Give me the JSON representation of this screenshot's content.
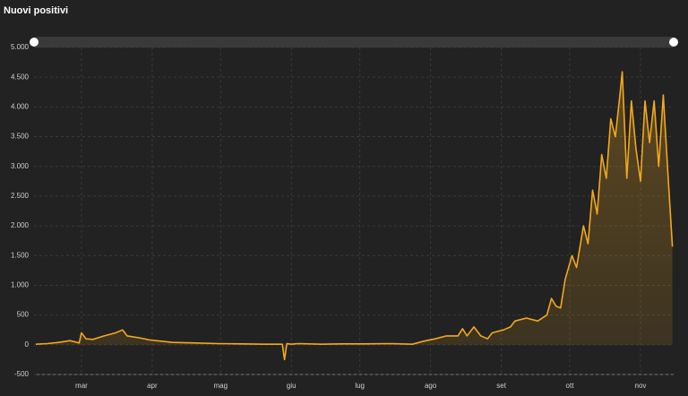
{
  "chart_data": {
    "type": "area",
    "title": "Nuovi positivi",
    "color": "#f2a81d",
    "grid": true,
    "x": [
      0,
      5,
      10,
      15,
      19,
      20,
      22,
      25,
      30,
      35,
      38,
      40,
      45,
      50,
      55,
      60,
      70,
      80,
      90,
      100,
      108,
      109,
      110,
      112,
      115,
      125,
      135,
      145,
      155,
      165,
      170,
      175,
      180,
      185,
      187,
      189,
      192,
      195,
      198,
      200,
      205,
      208,
      210,
      215,
      220,
      224,
      226,
      228,
      230,
      232,
      235,
      237,
      240,
      242,
      244,
      246,
      248,
      250,
      252,
      254,
      256,
      257,
      259,
      261,
      263,
      265,
      267,
      269,
      271,
      273,
      275,
      277,
      279
    ],
    "values": [
      10,
      20,
      40,
      70,
      30,
      200,
      100,
      90,
      150,
      200,
      250,
      150,
      120,
      80,
      60,
      40,
      30,
      20,
      15,
      10,
      10,
      -250,
      20,
      10,
      20,
      10,
      15,
      15,
      20,
      10,
      60,
      100,
      150,
      150,
      270,
      150,
      300,
      150,
      100,
      200,
      250,
      300,
      400,
      450,
      400,
      500,
      780,
      650,
      620,
      1100,
      1500,
      1300,
      2000,
      1700,
      2600,
      2200,
      3200,
      2800,
      3800,
      3500,
      4200,
      4590,
      2800,
      4100,
      3300,
      2750,
      4100,
      3400,
      4100,
      3000,
      4200,
      2900,
      1650
    ],
    "xlim": [
      0,
      280
    ],
    "xticks": [
      {
        "value": 20,
        "label": "mar"
      },
      {
        "value": 51,
        "label": "apr"
      },
      {
        "value": 81,
        "label": "mag"
      },
      {
        "value": 112,
        "label": "giu"
      },
      {
        "value": 142,
        "label": "lug"
      },
      {
        "value": 173,
        "label": "ago"
      },
      {
        "value": 204,
        "label": "set"
      },
      {
        "value": 234,
        "label": "ott"
      },
      {
        "value": 265,
        "label": "nov"
      }
    ],
    "ylim": [
      -500,
      5000
    ],
    "yticks": [
      -500,
      0,
      500,
      {
        "value": 1000,
        "label": "1.000"
      },
      {
        "value": 1500,
        "label": "1.500"
      },
      {
        "value": 2000,
        "label": "2.000"
      },
      {
        "value": 2500,
        "label": "2.500"
      },
      {
        "value": 3000,
        "label": "3.000"
      },
      {
        "value": 3500,
        "label": "3.500"
      },
      {
        "value": 4000,
        "label": "4.000"
      },
      {
        "value": 4500,
        "label": "4.500"
      },
      {
        "value": 5000,
        "label": "5.000"
      }
    ]
  }
}
